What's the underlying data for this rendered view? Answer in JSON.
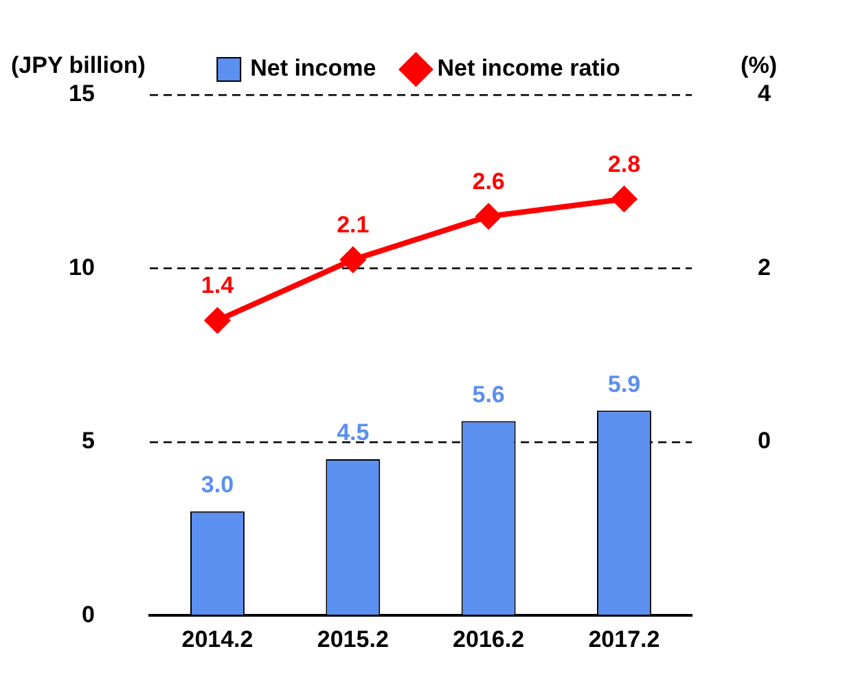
{
  "chart_data": {
    "type": "bar",
    "ylabel": "(JPY billion)",
    "y2label": "(%)",
    "categories": [
      "2014.2",
      "2015.2",
      "2016.2",
      "2017.2"
    ],
    "series": [
      {
        "name": "Net income",
        "color": "#5b8ff0",
        "values": [
          3.0,
          4.5,
          5.6,
          5.9
        ],
        "value_labels": [
          "3.0",
          "4.5",
          "5.6",
          "5.9"
        ]
      },
      {
        "name": "Net income ratio",
        "type": "line",
        "axis": "y2",
        "color": "#ff0000",
        "values": [
          1.4,
          2.1,
          2.6,
          2.8
        ],
        "value_labels": [
          "1.4",
          "2.1",
          "2.6",
          "2.8"
        ]
      }
    ],
    "ylim": [
      0,
      15
    ],
    "yticks": [
      0,
      5,
      10,
      15
    ],
    "y2lim": [
      -2,
      4
    ],
    "y2ticks": [
      0,
      2,
      4
    ],
    "grid": "y",
    "legend": "top",
    "marker": "diamond",
    "line_style": "solid",
    "data_labels": true
  }
}
